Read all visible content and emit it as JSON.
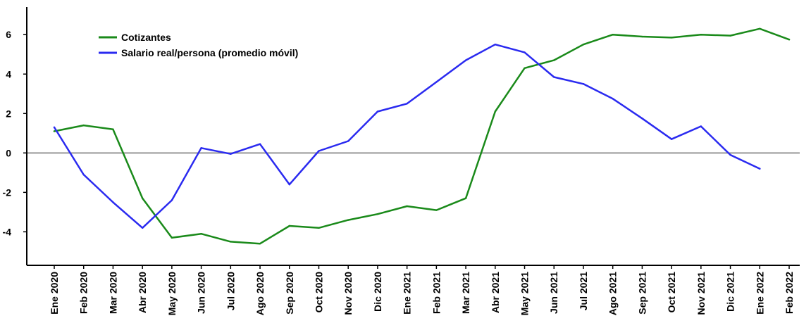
{
  "chart_data": {
    "type": "line",
    "categories": [
      "Ene 2020",
      "Feb 2020",
      "Mar 2020",
      "Abr 2020",
      "May 2020",
      "Jun 2020",
      "Jul 2020",
      "Ago 2020",
      "Sep 2020",
      "Oct 2020",
      "Nov 2020",
      "Dic 2020",
      "Ene 2021",
      "Feb 2021",
      "Mar 2021",
      "Abr 2021",
      "May 2021",
      "Jun 2021",
      "Jul 2021",
      "Ago 2021",
      "Sep 2021",
      "Oct 2021",
      "Nov 2021",
      "Dic 2021",
      "Ene 2022",
      "Feb 2022"
    ],
    "series": [
      {
        "name": "Cotizantes",
        "color": "#1a8a1a",
        "values": [
          1.1,
          1.4,
          1.2,
          -2.3,
          -4.3,
          -4.1,
          -4.5,
          -4.6,
          -3.7,
          -3.8,
          -3.4,
          -3.1,
          -2.7,
          -2.9,
          -2.3,
          2.1,
          4.3,
          4.7,
          5.5,
          6.0,
          5.9,
          5.85,
          6.0,
          5.95,
          6.3,
          5.75
        ]
      },
      {
        "name": "Salario real/persona (promedio móvil)",
        "color": "#2a2af0",
        "values": [
          1.3,
          -1.1,
          -2.5,
          -3.8,
          -2.4,
          0.25,
          -0.05,
          0.45,
          -1.6,
          0.1,
          0.6,
          2.1,
          2.5,
          3.6,
          4.7,
          5.5,
          5.1,
          3.85,
          3.5,
          2.75,
          1.75,
          0.7,
          1.35,
          -0.1,
          -0.8,
          null
        ]
      }
    ],
    "yticks": [
      -4,
      -2,
      0,
      2,
      4,
      6
    ],
    "ylim": [
      -5.7,
      7.4
    ],
    "title": "",
    "xlabel": "",
    "ylabel": "",
    "legend_position": "top-left",
    "zero_line_color": "#999999",
    "axis_color": "#000000"
  }
}
